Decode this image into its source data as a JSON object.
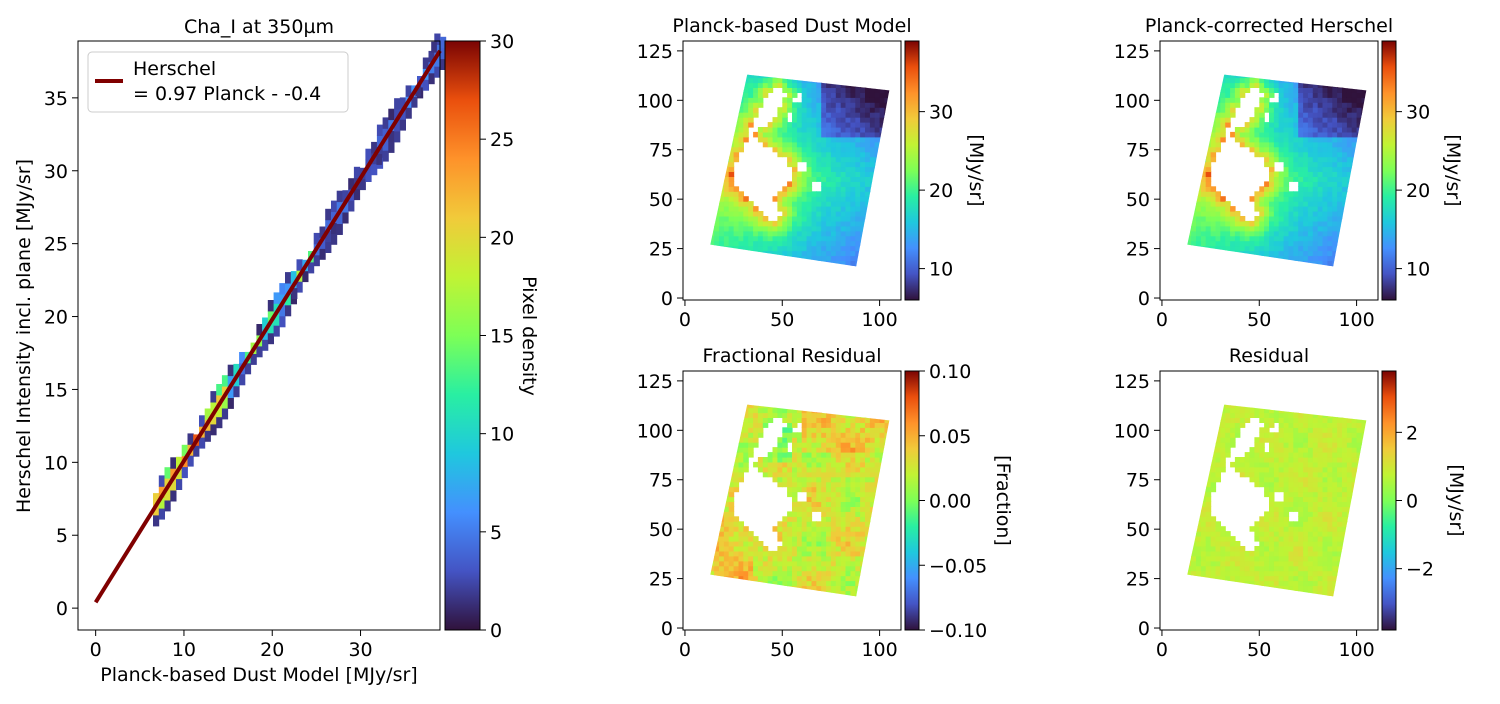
{
  "figure": {
    "colormap": "turbo",
    "panels": {
      "scatter": {
        "title": "Cha_I at 350µm",
        "xlabel": "Planck-based Dust Model [MJy/sr]",
        "ylabel": "Herschel Intensity incl. plane [MJy/sr]",
        "xticks": [
          "0",
          "10",
          "20",
          "30"
        ],
        "yticks": [
          "0",
          "5",
          "10",
          "15",
          "20",
          "25",
          "30",
          "35"
        ],
        "legend": {
          "line1": "Herschel",
          "line2": "= 0.97 Planck - -0.4"
        },
        "colorbar_label": "Pixel density",
        "colorbar_ticks": [
          "0",
          "5",
          "10",
          "15",
          "20",
          "25",
          "30"
        ]
      },
      "dust_model": {
        "title": "Planck-based Dust Model",
        "xticks": [
          "0",
          "50",
          "100"
        ],
        "yticks": [
          "0",
          "25",
          "50",
          "75",
          "100",
          "125"
        ],
        "colorbar_label": "[MJy/sr]",
        "colorbar_ticks": [
          "10",
          "20",
          "30"
        ]
      },
      "corrected": {
        "title": "Planck-corrected Herschel",
        "xticks": [
          "0",
          "50",
          "100"
        ],
        "yticks": [
          "0",
          "25",
          "50",
          "75",
          "100",
          "125"
        ],
        "colorbar_label": "[MJy/sr]",
        "colorbar_ticks": [
          "10",
          "20",
          "30"
        ]
      },
      "fractional": {
        "title": "Fractional Residual",
        "xticks": [
          "0",
          "50",
          "100"
        ],
        "yticks": [
          "0",
          "25",
          "50",
          "75",
          "100",
          "125"
        ],
        "colorbar_label": "[Fraction]",
        "colorbar_ticks": [
          "0.10",
          "0.05",
          "0.00",
          "−0.05",
          "−0.10"
        ]
      },
      "residual": {
        "title": "Residual",
        "xticks": [
          "0",
          "50",
          "100"
        ],
        "yticks": [
          "0",
          "25",
          "50",
          "75",
          "100",
          "125"
        ],
        "colorbar_label": "[MJy/sr]",
        "colorbar_ticks": [
          "2",
          "0",
          "−2"
        ]
      }
    }
  },
  "chart_data": [
    {
      "type": "heatmap",
      "title": "Cha_I at 350µm",
      "xlabel": "Planck-based Dust Model [MJy/sr]",
      "ylabel": "Herschel Intensity incl. plane [MJy/sr]",
      "xlim": [
        -2,
        39
      ],
      "ylim": [
        -1.5,
        38.9
      ],
      "colorbar": {
        "label": "Pixel density",
        "range": [
          0,
          30
        ]
      },
      "fit_line": {
        "label": "Herschel = 0.97 Planck - -0.4",
        "slope": 0.97,
        "intercept": 0.4,
        "color": "#800000"
      },
      "x_range_of_points": [
        6.5,
        39
      ]
    },
    {
      "type": "heatmap",
      "title": "Planck-based Dust Model",
      "xlim": [
        -1,
        111
      ],
      "ylim": [
        -1,
        130
      ],
      "colorbar": {
        "label": "[MJy/sr]",
        "range": [
          6,
          39
        ]
      }
    },
    {
      "type": "heatmap",
      "title": "Planck-corrected Herschel",
      "xlim": [
        -1,
        111
      ],
      "ylim": [
        -1,
        130
      ],
      "colorbar": {
        "label": "[MJy/sr]",
        "range": [
          6,
          39
        ]
      }
    },
    {
      "type": "heatmap",
      "title": "Fractional Residual",
      "xlim": [
        -1,
        111
      ],
      "ylim": [
        -1,
        130
      ],
      "colorbar": {
        "label": "[Fraction]",
        "range": [
          -0.1,
          0.1
        ]
      }
    },
    {
      "type": "heatmap",
      "title": "Residual",
      "xlim": [
        -1,
        111
      ],
      "ylim": [
        -1,
        130
      ],
      "colorbar": {
        "label": "[MJy/sr]",
        "range": [
          -3.8,
          3.8
        ]
      }
    }
  ]
}
